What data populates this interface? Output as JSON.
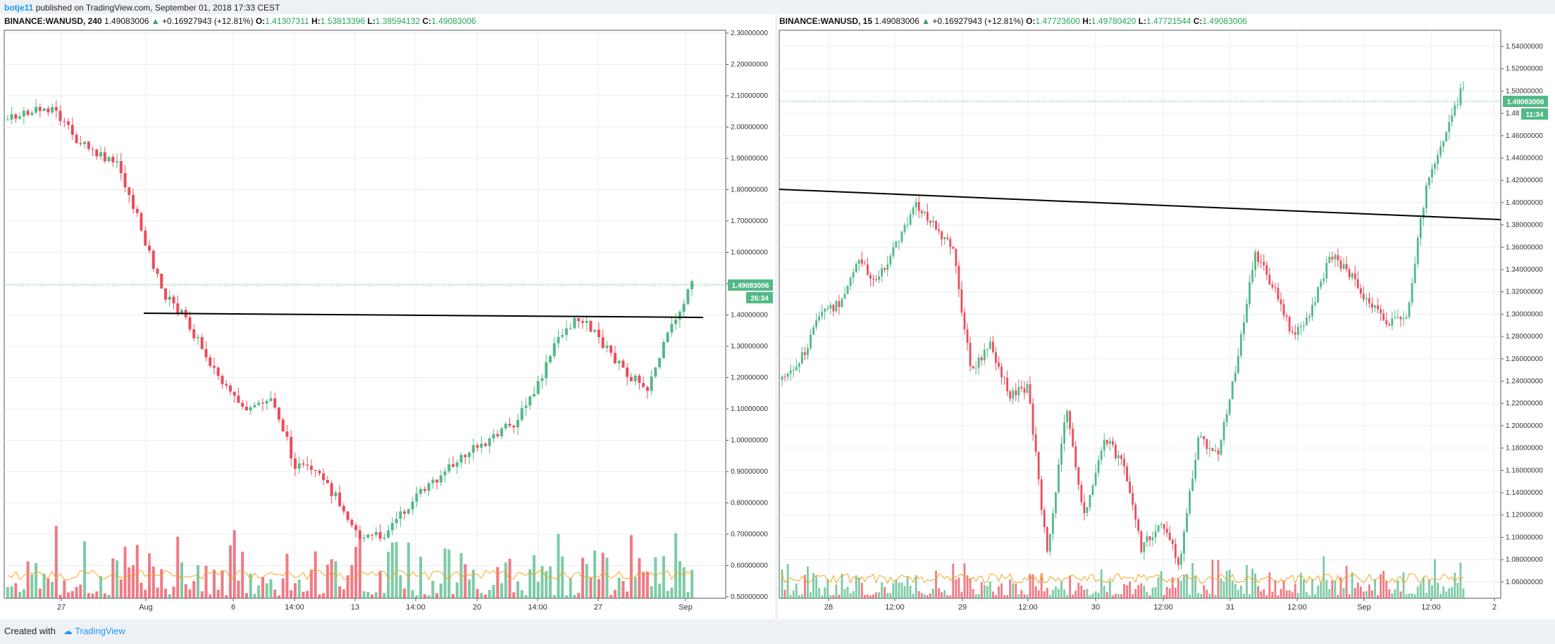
{
  "header": {
    "username": "botje11",
    "published": "published on TradingView.com, September 01, 2018 17:33 CEST"
  },
  "left": {
    "symbol": "BINANCE:WANUSD, 240",
    "last": "1.49083006",
    "change": "+0.16927943 (+12.81%)",
    "o_label": "O:",
    "o": "1.41307311",
    "h_label": "H:",
    "h": "1.53813396",
    "l_label": "L:",
    "l": "1.38594132",
    "c_label": "C:",
    "c": "1.49083006",
    "price_tag": "1.49083006",
    "countdown": "26:34",
    "y_ticks": [
      "2.30000000",
      "2.20000000",
      "2.10000000",
      "2.00000000",
      "1.90000000",
      "1.80000000",
      "1.70000000",
      "1.60000000",
      "1.50000000",
      "1.40000000",
      "1.30000000",
      "1.20000000",
      "1.10000000",
      "1.00000000",
      "0.90000000",
      "0.80000000",
      "0.70000000",
      "0.60000000",
      "0.50000000"
    ],
    "x_ticks": [
      "27",
      "Aug",
      "6",
      "14:00",
      "13",
      "14:00",
      "20",
      "14:00",
      "27",
      "Sep"
    ]
  },
  "right": {
    "symbol": "BINANCE:WANUSD, 15",
    "last": "1.49083006",
    "change": "+0.16927943 (+12.81%)",
    "o_label": "O:",
    "o": "1.47723600",
    "h_label": "H:",
    "h": "1.49780420",
    "l_label": "L:",
    "l": "1.47721544",
    "c_label": "C:",
    "c": "1.49083006",
    "price_tag": "1.49083006",
    "countdown": "11:34",
    "y_ticks": [
      "1.54000000",
      "1.52000000",
      "1.50000000",
      "1.48",
      "1.46000000",
      "1.44000000",
      "1.42000000",
      "1.40000000",
      "1.38000000",
      "1.36000000",
      "1.34000000",
      "1.32000000",
      "1.30000000",
      "1.28000000",
      "1.26000000",
      "1.24000000",
      "1.22000000",
      "1.20000000",
      "1.18000000",
      "1.16000000",
      "1.14000000",
      "1.12000000",
      "1.10000000",
      "1.08000000",
      "1.06000000"
    ],
    "x_ticks": [
      "28",
      "12:00",
      "29",
      "12:00",
      "30",
      "12:00",
      "31",
      "12:00",
      "Sep",
      "12:00",
      "2"
    ]
  },
  "footer": {
    "created_with": "Created with",
    "brand": "TradingView"
  },
  "colors": {
    "up": "#53b987",
    "down": "#eb4d5c",
    "grid": "#e9eef2",
    "price_line": "#26a65b",
    "volume_ma": "#f5a623"
  }
}
